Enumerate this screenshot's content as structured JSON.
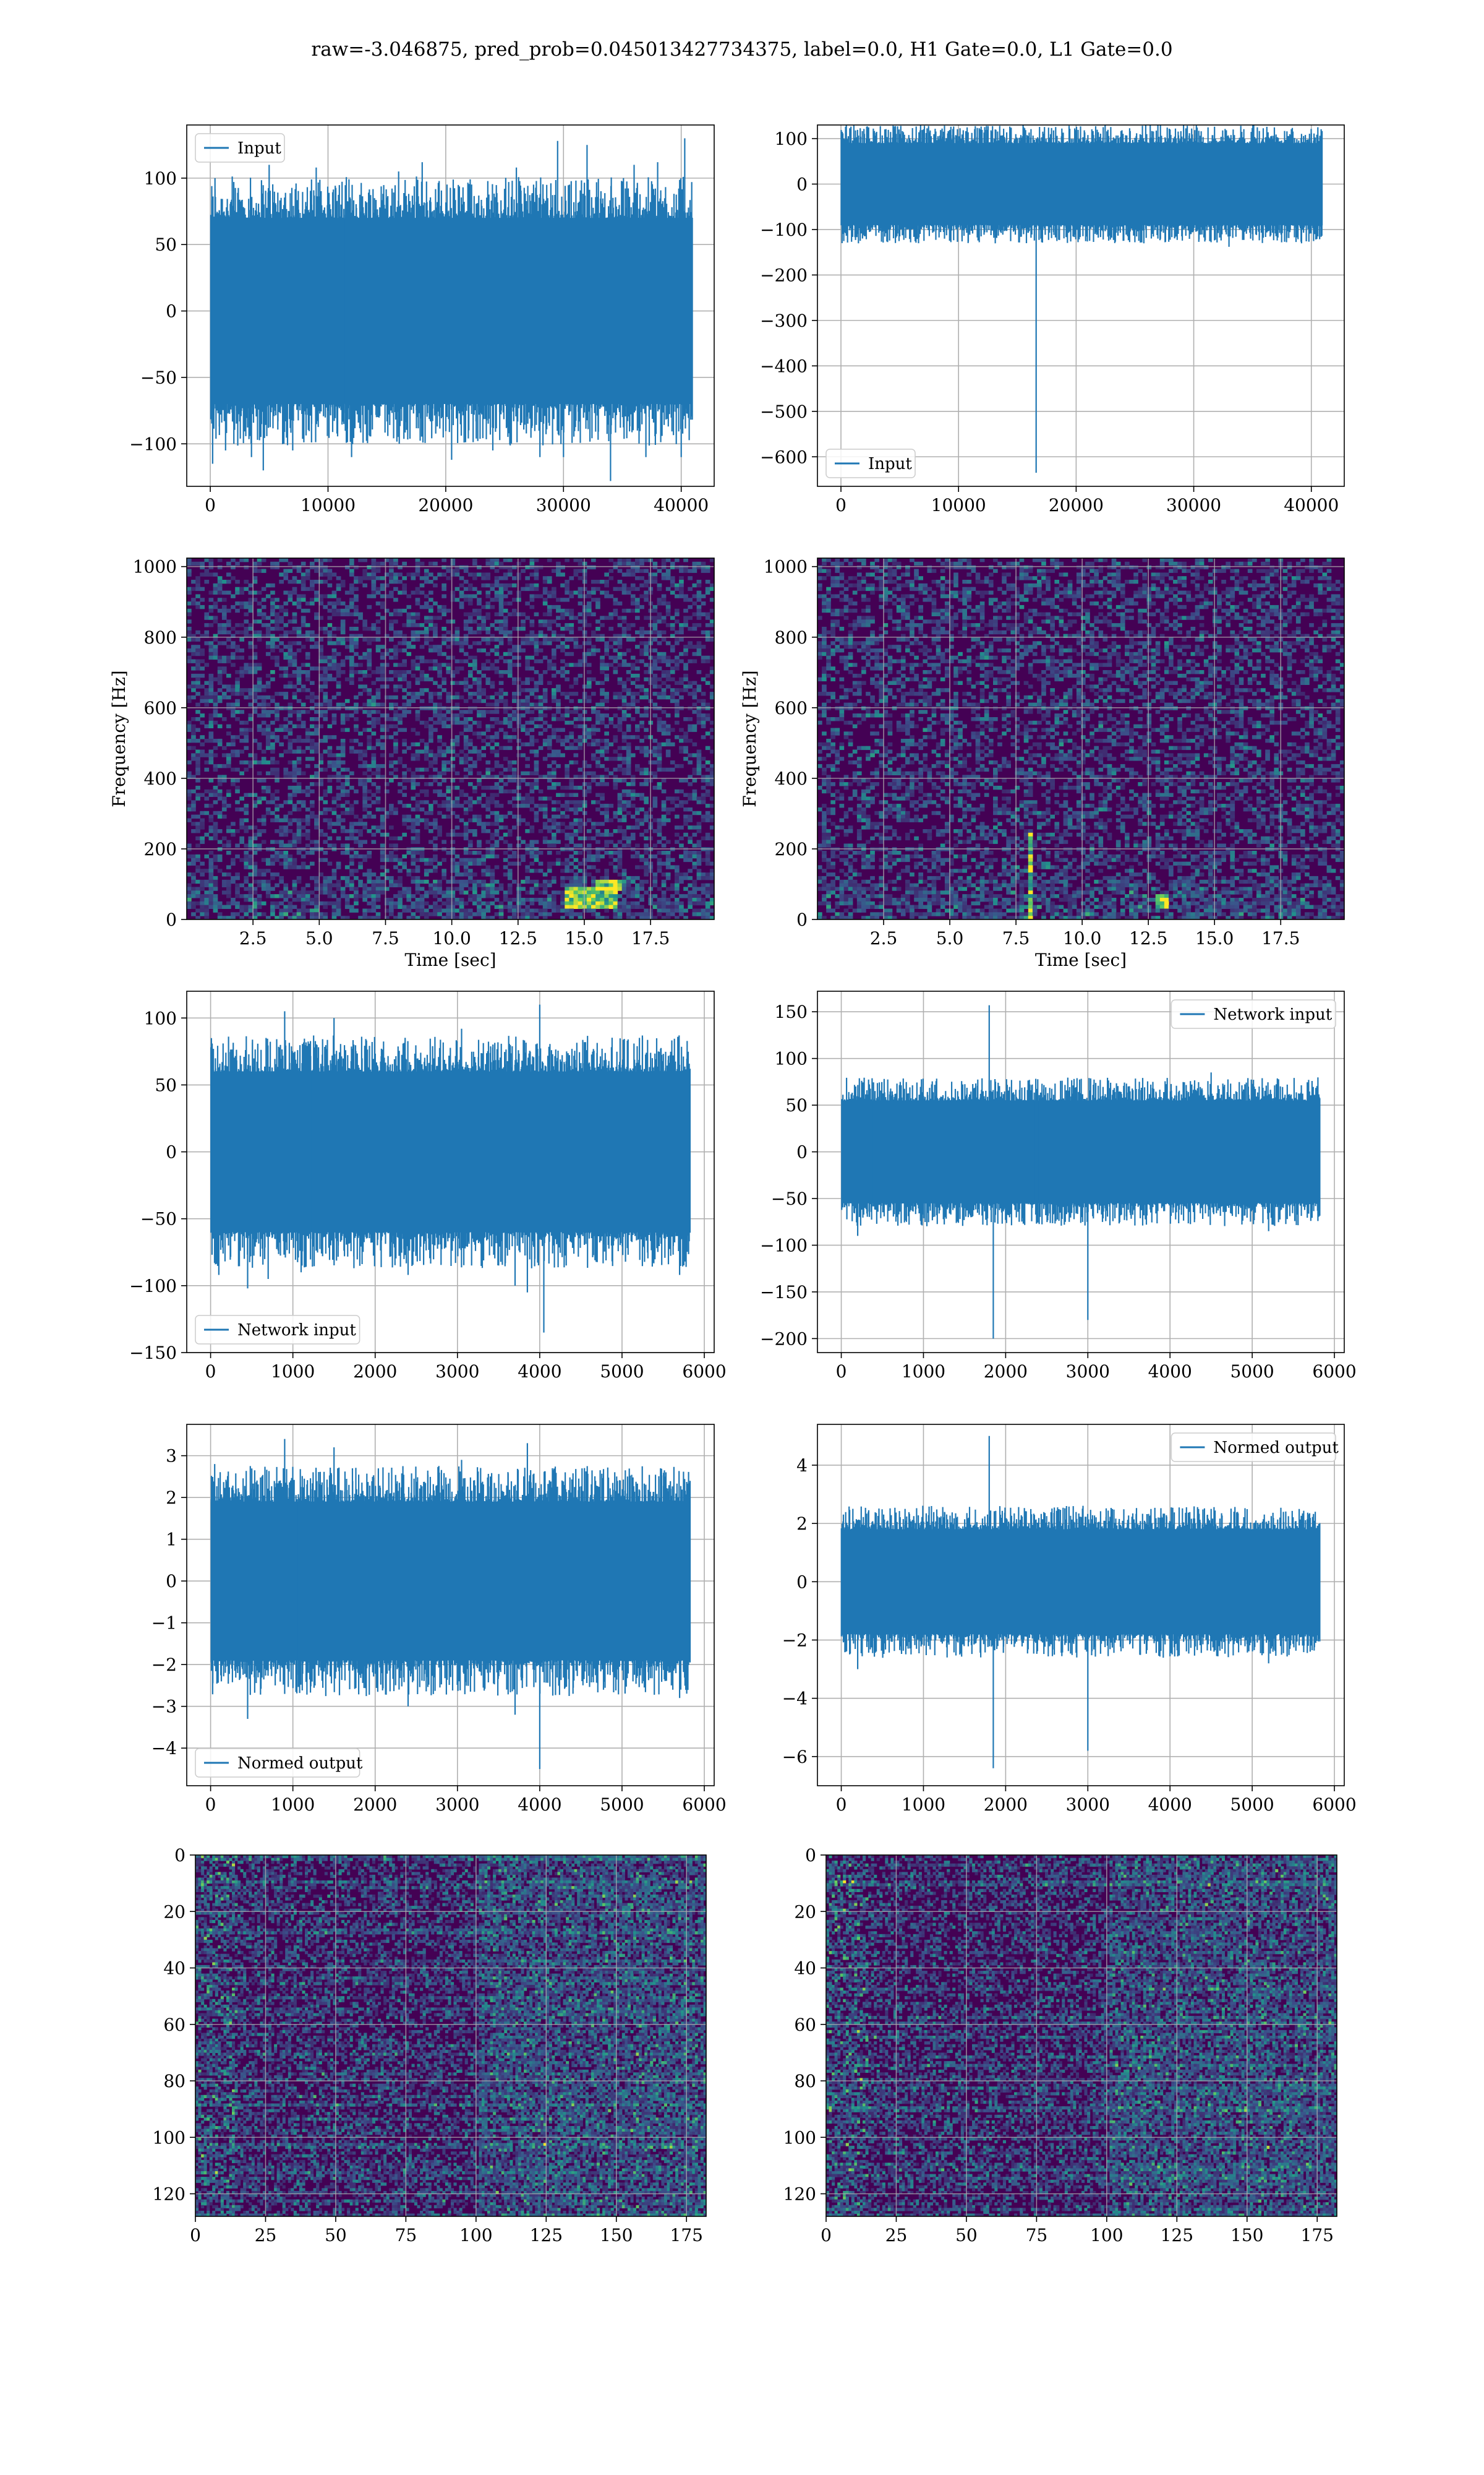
{
  "figure_title": "raw=-3.046875, pred_prob=0.045013427734375, label=0.0, H1 Gate=0.0, L1 Gate=0.0",
  "colors": {
    "line": "#1f77b4",
    "viridis_dark": "#440154",
    "viridis_mid": "#3b528b",
    "viridis_teal": "#21918c",
    "viridis_green": "#5ec962",
    "viridis_yellow": "#fde725",
    "grid": "#b0b0b0"
  },
  "chart_data": [
    {
      "id": "r1c1",
      "type": "line",
      "title": "",
      "xlabel": "",
      "ylabel": "",
      "xlim": [
        -2000,
        42800
      ],
      "ylim": [
        -132,
        140
      ],
      "xticks": [
        0,
        10000,
        20000,
        30000,
        40000
      ],
      "yticks": [
        -100,
        -50,
        0,
        50,
        100
      ],
      "grid": true,
      "legend_placement": "upper-left",
      "series": [
        {
          "name": "Input",
          "x_range": [
            0,
            40960
          ],
          "band": [
            -70,
            70
          ],
          "spikes": [
            [
              200,
              -115
            ],
            [
              400,
              100
            ],
            [
              1300,
              -105
            ],
            [
              2000,
              -100
            ],
            [
              3500,
              -110
            ],
            [
              4500,
              -120
            ],
            [
              5000,
              110
            ],
            [
              7000,
              -105
            ],
            [
              9000,
              108
            ],
            [
              12000,
              -110
            ],
            [
              16000,
              105
            ],
            [
              18000,
              112
            ],
            [
              20500,
              -112
            ],
            [
              24000,
              -105
            ],
            [
              26000,
              108
            ],
            [
              28000,
              -110
            ],
            [
              29500,
              128
            ],
            [
              30000,
              -110
            ],
            [
              32000,
              125
            ],
            [
              34000,
              -128
            ],
            [
              36000,
              110
            ],
            [
              37000,
              -110
            ],
            [
              38000,
              112
            ],
            [
              40000,
              -110
            ],
            [
              40300,
              130
            ]
          ]
        }
      ]
    },
    {
      "id": "r1c2",
      "type": "line",
      "title": "",
      "xlabel": "",
      "ylabel": "",
      "xlim": [
        -2000,
        42800
      ],
      "ylim": [
        -665,
        130
      ],
      "xticks": [
        0,
        10000,
        20000,
        30000,
        40000
      ],
      "yticks": [
        -600,
        -500,
        -400,
        -300,
        -200,
        -100,
        0,
        100
      ],
      "grid": true,
      "legend_placement": "lower-left",
      "series": [
        {
          "name": "Input",
          "x_range": [
            0,
            40960
          ],
          "band": [
            -90,
            90
          ],
          "spikes": [
            [
              100,
              115
            ],
            [
              500,
              -110
            ],
            [
              5000,
              -115
            ],
            [
              9500,
              108
            ],
            [
              13000,
              -118
            ],
            [
              16600,
              -635
            ],
            [
              17000,
              -120
            ],
            [
              21000,
              108
            ],
            [
              24000,
              -125
            ],
            [
              26000,
              110
            ],
            [
              28500,
              -115
            ],
            [
              33000,
              -138
            ],
            [
              35000,
              -110
            ],
            [
              40000,
              112
            ]
          ]
        }
      ]
    },
    {
      "id": "r2c1",
      "type": "heatmap",
      "colormap": "viridis",
      "title": "",
      "xlabel": "Time [sec]",
      "ylabel": "Frequency [Hz]",
      "xlim": [
        0,
        19.9
      ],
      "ylim": [
        0,
        1024
      ],
      "xticks": [
        2.5,
        5.0,
        7.5,
        10.0,
        12.5,
        15.0,
        17.5
      ],
      "yticks": [
        0,
        200,
        400,
        600,
        800,
        1000
      ],
      "grid": true,
      "hotspots": [
        [
          15.2,
          60,
          2.0,
          60
        ],
        [
          16.0,
          100,
          1.0,
          30
        ]
      ]
    },
    {
      "id": "r2c2",
      "type": "heatmap",
      "colormap": "viridis",
      "title": "",
      "xlabel": "Time [sec]",
      "ylabel": "Frequency [Hz]",
      "xlim": [
        0,
        19.9
      ],
      "ylim": [
        0,
        1024
      ],
      "xticks": [
        2.5,
        5.0,
        7.5,
        10.0,
        12.5,
        15.0,
        17.5
      ],
      "yticks": [
        0,
        200,
        400,
        600,
        800,
        1000
      ],
      "grid": true,
      "hotspots": [
        [
          8.1,
          50,
          0.2,
          400
        ],
        [
          13.0,
          50,
          0.4,
          40
        ]
      ]
    },
    {
      "id": "r3c1",
      "type": "line",
      "title": "",
      "xlabel": "",
      "ylabel": "",
      "xlim": [
        -290,
        6120
      ],
      "ylim": [
        -150,
        120
      ],
      "xticks": [
        0,
        1000,
        2000,
        3000,
        4000,
        5000,
        6000
      ],
      "yticks": [
        -150,
        -100,
        -50,
        0,
        50,
        100
      ],
      "grid": true,
      "legend_placement": "lower-left",
      "series": [
        {
          "name": "Network input",
          "x_range": [
            0,
            5830
          ],
          "band": [
            -60,
            60
          ],
          "spikes": [
            [
              10,
              85
            ],
            [
              100,
              -92
            ],
            [
              450,
              -102
            ],
            [
              700,
              -95
            ],
            [
              900,
              105
            ],
            [
              1100,
              -90
            ],
            [
              1500,
              100
            ],
            [
              2400,
              -92
            ],
            [
              3050,
              92
            ],
            [
              3700,
              -100
            ],
            [
              3850,
              -105
            ],
            [
              4000,
              110
            ],
            [
              4050,
              -135
            ],
            [
              5700,
              -92
            ],
            [
              5800,
              70
            ]
          ]
        }
      ]
    },
    {
      "id": "r3c2",
      "type": "line",
      "title": "",
      "xlabel": "",
      "ylabel": "",
      "xlim": [
        -290,
        6120
      ],
      "ylim": [
        -215,
        172
      ],
      "xticks": [
        0,
        1000,
        2000,
        3000,
        4000,
        5000,
        6000
      ],
      "yticks": [
        -200,
        -150,
        -100,
        -50,
        0,
        50,
        100,
        150
      ],
      "grid": true,
      "legend_placement": "upper-right",
      "series": [
        {
          "name": "Network input",
          "x_range": [
            0,
            5830
          ],
          "band": [
            -55,
            55
          ],
          "spikes": [
            [
              200,
              -90
            ],
            [
              1800,
              157
            ],
            [
              1850,
              -200
            ],
            [
              3000,
              -180
            ],
            [
              4500,
              85
            ],
            [
              5200,
              -85
            ]
          ]
        }
      ]
    },
    {
      "id": "r4c1",
      "type": "line",
      "title": "",
      "xlabel": "",
      "ylabel": "",
      "xlim": [
        -290,
        6120
      ],
      "ylim": [
        -4.9,
        3.75
      ],
      "xticks": [
        0,
        1000,
        2000,
        3000,
        4000,
        5000,
        6000
      ],
      "yticks": [
        -4,
        -3,
        -2,
        -1,
        0,
        1,
        2,
        3
      ],
      "grid": true,
      "legend_placement": "lower-left",
      "series": [
        {
          "name": "Normed output",
          "x_range": [
            0,
            5830
          ],
          "band": [
            -1.9,
            1.9
          ],
          "spikes": [
            [
              50,
              2.8
            ],
            [
              450,
              -3.3
            ],
            [
              900,
              3.4
            ],
            [
              1500,
              3.2
            ],
            [
              2400,
              -3.0
            ],
            [
              3050,
              2.9
            ],
            [
              3700,
              -3.2
            ],
            [
              3850,
              3.3
            ],
            [
              4000,
              -4.5
            ],
            [
              5700,
              -2.8
            ]
          ]
        }
      ]
    },
    {
      "id": "r4c2",
      "type": "line",
      "title": "",
      "xlabel": "",
      "ylabel": "",
      "xlim": [
        -290,
        6120
      ],
      "ylim": [
        -7.0,
        5.4
      ],
      "xticks": [
        0,
        1000,
        2000,
        3000,
        4000,
        5000,
        6000
      ],
      "yticks": [
        -6,
        -4,
        -2,
        0,
        2,
        4
      ],
      "grid": true,
      "legend_placement": "upper-right",
      "series": [
        {
          "name": "Normed output",
          "x_range": [
            0,
            5830
          ],
          "band": [
            -1.8,
            1.8
          ],
          "spikes": [
            [
              200,
              -3.0
            ],
            [
              1800,
              5.0
            ],
            [
              1850,
              -6.4
            ],
            [
              3000,
              -5.8
            ],
            [
              4500,
              2.5
            ],
            [
              5200,
              -2.8
            ]
          ]
        }
      ]
    },
    {
      "id": "r5c1",
      "type": "heatmap",
      "colormap": "viridis",
      "title": "",
      "xlabel": "",
      "ylabel": "",
      "xlim": [
        0,
        182
      ],
      "ylim": [
        0,
        128
      ],
      "y_inverted": true,
      "xticks": [
        0,
        25,
        50,
        75,
        100,
        125,
        150,
        175
      ],
      "yticks": [
        0,
        20,
        40,
        60,
        80,
        100,
        120
      ],
      "grid": true
    },
    {
      "id": "r5c2",
      "type": "heatmap",
      "colormap": "viridis",
      "title": "",
      "xlabel": "",
      "ylabel": "",
      "xlim": [
        0,
        182
      ],
      "ylim": [
        0,
        128
      ],
      "y_inverted": true,
      "xticks": [
        0,
        25,
        50,
        75,
        100,
        125,
        150,
        175
      ],
      "yticks": [
        0,
        20,
        40,
        60,
        80,
        100,
        120
      ],
      "grid": true
    }
  ]
}
